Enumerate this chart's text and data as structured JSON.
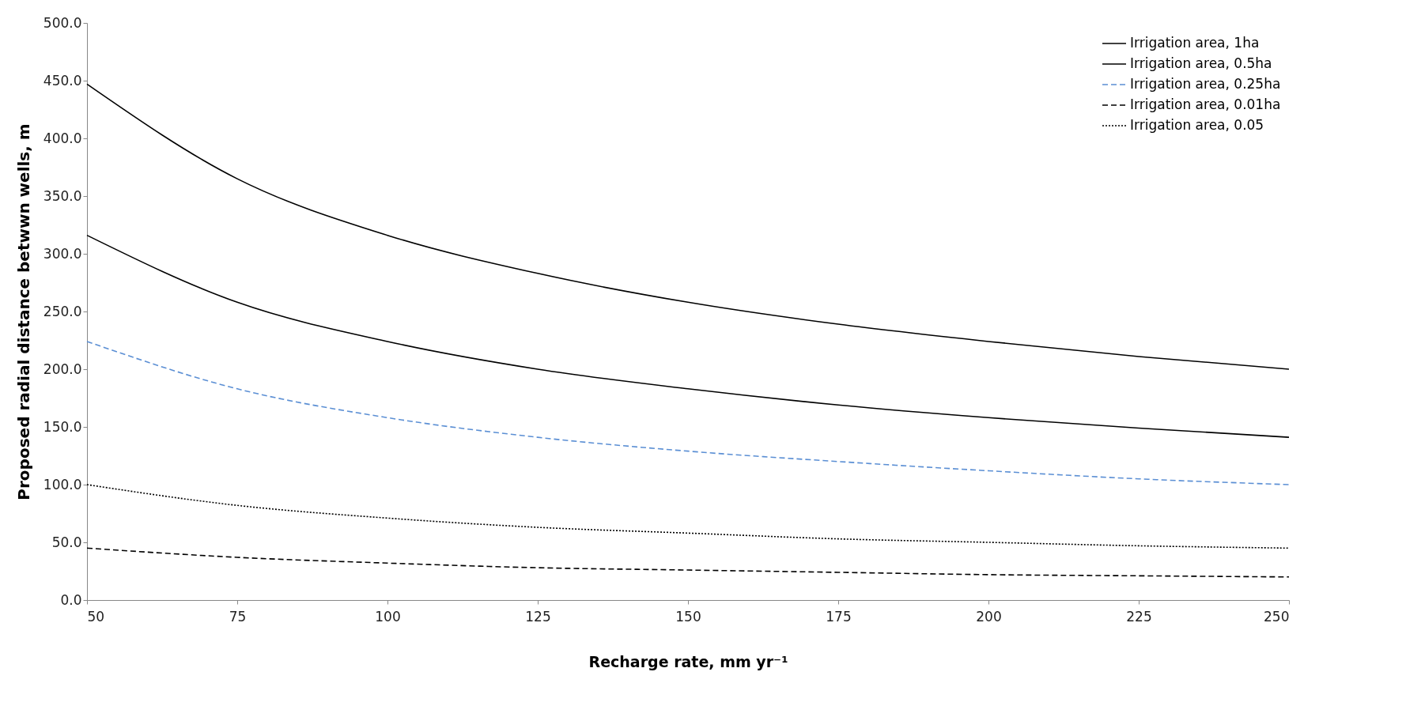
{
  "chart_data": {
    "type": "line",
    "xlabel": "Recharge rate, mm yr⁻¹",
    "ylabel": "Proposed radial distance betwwn wells, m",
    "x": [
      50,
      75,
      100,
      125,
      150,
      175,
      200,
      225,
      250
    ],
    "series": [
      {
        "name": "Irrigation area, 1ha",
        "color": "#000000",
        "line_style": "solid",
        "values": [
          447,
          365,
          316,
          283,
          258,
          239,
          224,
          211,
          200
        ]
      },
      {
        "name": "Irrigation area, 0.5ha",
        "color": "#000000",
        "line_style": "solid",
        "values": [
          316,
          258,
          224,
          200,
          183,
          169,
          158,
          149,
          141
        ]
      },
      {
        "name": "Irrigation area, 0.25ha",
        "color": "#5b8fd4",
        "line_style": "dashed",
        "values": [
          224,
          183,
          158,
          141,
          129,
          120,
          112,
          105,
          100
        ]
      },
      {
        "name": "Irrigation area, 0.01ha",
        "color": "#000000",
        "line_style": "dashed",
        "values": [
          45,
          37,
          32,
          28,
          26,
          24,
          22,
          21,
          20
        ]
      },
      {
        "name": "Irrigation area, 0.05",
        "color": "#000000",
        "line_style": "dotted",
        "values": [
          100,
          82,
          71,
          63,
          58,
          53,
          50,
          47,
          45
        ]
      }
    ],
    "xlim": [
      50,
      250
    ],
    "xticks": [
      50,
      75,
      100,
      125,
      150,
      175,
      200,
      225,
      250
    ],
    "ylim": [
      0,
      500
    ],
    "yticks": [
      {
        "value": 0,
        "label": "0.0"
      },
      {
        "value": 50,
        "label": "50.0"
      },
      {
        "value": 100,
        "label": "100.0"
      },
      {
        "value": 150,
        "label": "150.0"
      },
      {
        "value": 200,
        "label": "200.0"
      },
      {
        "value": 250,
        "label": "250.0"
      },
      {
        "value": 300,
        "label": "300.0"
      },
      {
        "value": 350,
        "label": "350.0"
      },
      {
        "value": 400,
        "label": "400.0"
      },
      {
        "value": 450,
        "label": "450.0"
      },
      {
        "value": 500,
        "label": "500.0"
      }
    ],
    "grid": false,
    "legend": "top right",
    "marker": "none"
  }
}
